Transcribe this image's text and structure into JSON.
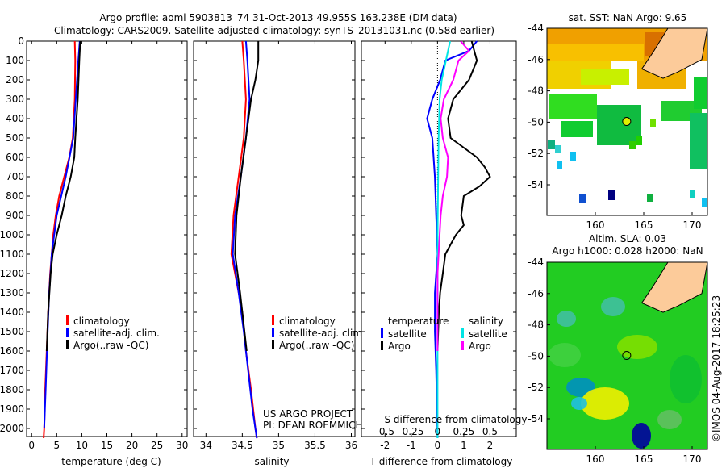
{
  "title_line1": "Argo profile: aoml 5903813_74 31-Oct-2013 49.955S 163.238E (DM data)",
  "title_line2": "Climatology: CARS2009. Satellite-adjusted climatology: synTS_20131031.nc (0.58d earlier)",
  "project_line1": "US ARGO PROJECT",
  "project_line2": "PI: DEAN ROEMMICH",
  "watermark": "©IMOS 04-Aug-2017 18:25:23",
  "colors": {
    "climatology": "#ff0000",
    "satellite": "#0000ff",
    "argo": "#000000",
    "s_satellite": "#00e5e5",
    "s_argo": "#ff00ff",
    "land": "#fccb9a"
  },
  "chart_data": [
    {
      "type": "line",
      "xlabel": "temperature (deg C)",
      "ylabel": "",
      "xlim": [
        -1,
        31
      ],
      "ylim": [
        2070,
        0
      ],
      "xticks": [
        0,
        5,
        10,
        15,
        20,
        25,
        30
      ],
      "yticks": [
        0,
        100,
        200,
        300,
        400,
        500,
        600,
        700,
        800,
        900,
        1000,
        1100,
        1200,
        1300,
        1400,
        1500,
        1600,
        1700,
        1800,
        1900,
        2000
      ],
      "legend": [
        "climatology",
        "satellite-adj. clim.",
        "Argo(..raw -QC)"
      ],
      "series": [
        {
          "name": "climatology",
          "color": "#ff0000",
          "depth": [
            0,
            100,
            300,
            500,
            600,
            700,
            800,
            900,
            1000,
            1200,
            1400,
            1600,
            1800,
            2000,
            2050
          ],
          "values": [
            8.6,
            8.7,
            8.6,
            8.2,
            7.5,
            6.5,
            5.5,
            4.8,
            4.3,
            3.7,
            3.3,
            3.0,
            2.7,
            2.5,
            2.4
          ]
        },
        {
          "name": "satellite-adj. clim.",
          "color": "#0000ff",
          "depth": [
            0,
            100,
            300,
            500,
            700,
            900,
            1100,
            1300,
            1500,
            1800,
            2000
          ],
          "values": [
            9.6,
            9.3,
            8.8,
            8.3,
            6.8,
            5.0,
            4.0,
            3.5,
            3.2,
            2.8,
            2.5
          ]
        },
        {
          "name": "Argo(..raw -QC)",
          "color": "#000000",
          "depth": [
            0,
            100,
            300,
            500,
            600,
            700,
            800,
            900,
            1000,
            1100,
            1200,
            1400,
            1600
          ],
          "values": [
            9.7,
            9.5,
            9.2,
            8.7,
            8.5,
            7.8,
            6.8,
            6.0,
            5.0,
            4.2,
            3.8,
            3.3,
            3.0
          ]
        }
      ]
    },
    {
      "type": "line",
      "xlabel": "salinity",
      "xlim": [
        33.83,
        36.05
      ],
      "ylim": [
        2070,
        0
      ],
      "xticks": [
        34,
        34.5,
        35,
        35.5,
        36
      ],
      "legend": [
        "climatology",
        "satellite-adj. clim.",
        "Argo(..raw -QC)"
      ],
      "series": [
        {
          "name": "climatology",
          "color": "#ff0000",
          "depth": [
            0,
            100,
            300,
            500,
            700,
            900,
            1100,
            1200,
            1400,
            1600,
            1800,
            2000,
            2050
          ],
          "values": [
            34.5,
            34.52,
            34.55,
            34.52,
            34.45,
            34.38,
            34.35,
            34.4,
            34.5,
            34.55,
            34.62,
            34.68,
            34.7
          ]
        },
        {
          "name": "satellite-adj. clim.",
          "color": "#0000ff",
          "depth": [
            0,
            100,
            300,
            500,
            700,
            900,
            1100,
            1300,
            1500,
            1700,
            1900,
            2050
          ],
          "values": [
            34.55,
            34.57,
            34.6,
            34.55,
            34.48,
            34.4,
            34.37,
            34.45,
            34.52,
            34.58,
            34.64,
            34.7
          ]
        },
        {
          "name": "Argo(..raw -QC)",
          "color": "#000000",
          "depth": [
            0,
            100,
            200,
            300,
            500,
            700,
            900,
            1100,
            1300,
            1500,
            1600
          ],
          "values": [
            34.72,
            34.72,
            34.68,
            34.62,
            34.55,
            34.48,
            34.42,
            34.4,
            34.47,
            34.53,
            34.56
          ]
        }
      ]
    },
    {
      "type": "line",
      "xlabel": "T difference from climatology",
      "x2label": "S difference from climatology",
      "xlim": [
        -2.9,
        3.0
      ],
      "x2lim": [
        -0.725,
        0.75
      ],
      "ylim": [
        2070,
        0
      ],
      "xticks": [
        -2,
        -1,
        0,
        1,
        2
      ],
      "x2ticks": [
        "-0.5",
        "-0.25",
        "0",
        "0.25",
        "0.5"
      ],
      "legend_t_title": "temperature",
      "legend_s_title": "salinity",
      "legend_items": [
        "satellite",
        "Argo",
        "satellite",
        "Argo"
      ],
      "series": [
        {
          "name": "T satellite",
          "axis": "T",
          "color": "#0000ff",
          "depth": [
            0,
            50,
            100,
            200,
            300,
            400,
            500,
            700,
            900,
            1100,
            1300,
            1500,
            1700,
            2050
          ],
          "values": [
            1.5,
            1.2,
            0.3,
            0.1,
            -0.2,
            -0.4,
            -0.2,
            -0.1,
            -0.05,
            0,
            -0.1,
            -0.1,
            -0.05,
            0
          ]
        },
        {
          "name": "T Argo",
          "axis": "T",
          "color": "#000000",
          "depth": [
            0,
            50,
            100,
            200,
            300,
            400,
            500,
            550,
            600,
            650,
            700,
            750,
            800,
            900,
            950,
            1000,
            1050,
            1100,
            1200,
            1300,
            1400,
            1600
          ],
          "values": [
            1.3,
            1.4,
            1.5,
            1.2,
            0.6,
            0.4,
            0.5,
            1.0,
            1.5,
            1.8,
            2.0,
            1.6,
            1.0,
            0.9,
            1.0,
            0.7,
            0.5,
            0.3,
            0.2,
            0.1,
            0.05,
            0
          ]
        },
        {
          "name": "S satellite",
          "axis": "S",
          "color": "#00e5e5",
          "depth": [
            0,
            100,
            200,
            300,
            500,
            1000,
            1500,
            2050
          ],
          "values": [
            0.12,
            0.08,
            0.04,
            0.02,
            0.01,
            0.0,
            0.0,
            0.0
          ]
        },
        {
          "name": "S Argo",
          "axis": "S",
          "color": "#ff00ff",
          "depth": [
            0,
            50,
            100,
            200,
            300,
            400,
            500,
            600,
            700,
            800,
            900,
            1000,
            1200,
            1600
          ],
          "values": [
            0.22,
            0.3,
            0.2,
            0.15,
            0.06,
            0.03,
            0.05,
            0.1,
            0.09,
            0.05,
            0.03,
            0.02,
            0,
            0
          ]
        }
      ]
    },
    {
      "type": "heatmap",
      "title": "sat. SST: NaN Argo: 9.65",
      "xticks": [
        160,
        165,
        170
      ],
      "yticks": [
        -44,
        -46,
        -48,
        -50,
        -52,
        -54
      ],
      "float_lon": 163.238,
      "float_lat": -49.955
    },
    {
      "type": "heatmap",
      "title_line1": "Altim. SLA: 0.03",
      "title_line2": "Argo h1000: 0.028 h2000: NaN",
      "xticks": [
        160,
        165,
        170
      ],
      "yticks": [
        -44,
        -46,
        -48,
        -50,
        -52,
        -54
      ],
      "float_lon": 163.238,
      "float_lat": -49.955
    }
  ]
}
